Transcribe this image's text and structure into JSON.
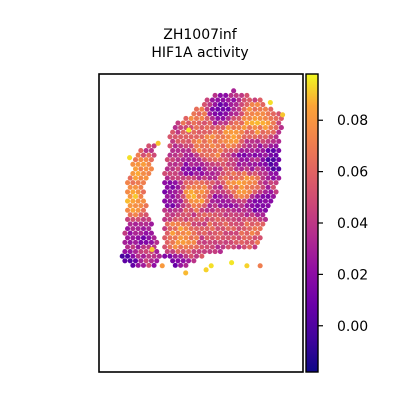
{
  "chart_data": {
    "type": "scatter",
    "subtype": "spatial-spot-map",
    "title_line1": "ZH1007inf",
    "title_line2": "HIF1A activity",
    "xlabel": "",
    "ylabel": "",
    "colormap": "plasma",
    "colorbar": {
      "range": [
        -0.018,
        0.098
      ],
      "ticks": [
        0.0,
        0.02,
        0.04,
        0.06,
        0.08
      ],
      "tick_labels": [
        "0.00",
        "0.02",
        "0.04",
        "0.06",
        "0.08"
      ]
    },
    "grid": false,
    "value_range": [
      -0.018,
      0.098
    ],
    "tissue_regions": [
      {
        "name": "left-strip",
        "polygon": [
          [
            0.39,
            0.78
          ],
          [
            0.42,
            0.72
          ],
          [
            0.5,
            0.68
          ],
          [
            0.55,
            0.66
          ],
          [
            0.56,
            0.7
          ],
          [
            0.53,
            0.95
          ],
          [
            0.48,
            1.0
          ],
          [
            0.45,
            1.15
          ],
          [
            0.47,
            1.35
          ],
          [
            0.55,
            1.55
          ],
          [
            0.62,
            1.8
          ],
          [
            0.55,
            1.9
          ],
          [
            0.45,
            1.92
          ],
          [
            0.32,
            1.9
          ],
          [
            0.22,
            1.82
          ],
          [
            0.25,
            1.55
          ],
          [
            0.28,
            1.3
          ],
          [
            0.27,
            1.1
          ],
          [
            0.32,
            0.9
          ]
        ]
      },
      {
        "name": "main-body",
        "polygon": [
          [
            0.7,
            0.52
          ],
          [
            0.8,
            0.45
          ],
          [
            1.0,
            0.3
          ],
          [
            1.1,
            0.22
          ],
          [
            1.2,
            0.18
          ],
          [
            1.32,
            0.16
          ],
          [
            1.45,
            0.2
          ],
          [
            1.58,
            0.25
          ],
          [
            1.72,
            0.34
          ],
          [
            1.8,
            0.42
          ],
          [
            1.78,
            0.7
          ],
          [
            1.78,
            0.95
          ],
          [
            1.74,
            1.15
          ],
          [
            1.68,
            1.3
          ],
          [
            1.62,
            1.5
          ],
          [
            1.55,
            1.7
          ],
          [
            1.35,
            1.7
          ],
          [
            1.18,
            1.75
          ],
          [
            1.0,
            1.8
          ],
          [
            0.85,
            1.9
          ],
          [
            0.72,
            1.88
          ],
          [
            0.64,
            1.8
          ],
          [
            0.62,
            1.5
          ],
          [
            0.62,
            1.2
          ],
          [
            0.64,
            0.95
          ],
          [
            0.68,
            0.7
          ]
        ]
      }
    ],
    "hotspots": [
      {
        "x": 0.38,
        "y": 0.96,
        "value": 0.08
      },
      {
        "x": 0.32,
        "y": 1.22,
        "value": 0.09
      },
      {
        "x": 0.48,
        "y": 1.28,
        "value": 0.078
      },
      {
        "x": 0.95,
        "y": 1.15,
        "value": 0.088
      },
      {
        "x": 1.3,
        "y": 0.6,
        "value": 0.082
      },
      {
        "x": 1.55,
        "y": 0.45,
        "value": 0.085
      },
      {
        "x": 1.08,
        "y": 0.7,
        "value": 0.075
      },
      {
        "x": 1.4,
        "y": 1.1,
        "value": 0.08
      },
      {
        "x": 0.8,
        "y": 1.6,
        "value": 0.082
      },
      {
        "x": 1.2,
        "y": 1.4,
        "value": 0.07
      },
      {
        "x": 1.52,
        "y": 1.52,
        "value": 0.065
      },
      {
        "x": 0.95,
        "y": 0.4,
        "value": 0.072
      }
    ],
    "coldspots": [
      {
        "x": 0.22,
        "y": 1.88,
        "value": -0.015
      },
      {
        "x": 1.76,
        "y": 0.85,
        "value": -0.005
      },
      {
        "x": 1.22,
        "y": 1.3,
        "value": 0.01
      },
      {
        "x": 0.68,
        "y": 1.2,
        "value": 0.012
      },
      {
        "x": 1.6,
        "y": 1.3,
        "value": 0.005
      },
      {
        "x": 1.2,
        "y": 0.35,
        "value": 0.008
      },
      {
        "x": 0.7,
        "y": 1.9,
        "value": 0.01
      },
      {
        "x": 0.45,
        "y": 1.55,
        "value": 0.015
      },
      {
        "x": 0.95,
        "y": 0.95,
        "value": 0.018
      },
      {
        "x": 1.45,
        "y": 0.8,
        "value": 0.02
      }
    ],
    "scattered_dots": [
      {
        "x": 0.88,
        "y": 0.55,
        "value": 0.096
      },
      {
        "x": 0.52,
        "y": 1.72,
        "value": 0.09
      },
      {
        "x": 1.05,
        "y": 1.92,
        "value": 0.092
      },
      {
        "x": 1.3,
        "y": 1.85,
        "value": 0.095
      },
      {
        "x": 1.68,
        "y": 0.28,
        "value": 0.094
      },
      {
        "x": 0.62,
        "y": 1.88,
        "value": 0.08
      },
      {
        "x": 0.85,
        "y": 1.95,
        "value": 0.088
      },
      {
        "x": 1.1,
        "y": 1.88,
        "value": 0.094
      },
      {
        "x": 1.45,
        "y": 1.88,
        "value": 0.092
      },
      {
        "x": 1.58,
        "y": 1.88,
        "value": 0.07
      },
      {
        "x": 0.58,
        "y": 0.68,
        "value": 0.09
      },
      {
        "x": 0.3,
        "y": 0.82,
        "value": 0.094
      },
      {
        "x": 1.8,
        "y": 0.4,
        "value": 0.09
      }
    ]
  }
}
